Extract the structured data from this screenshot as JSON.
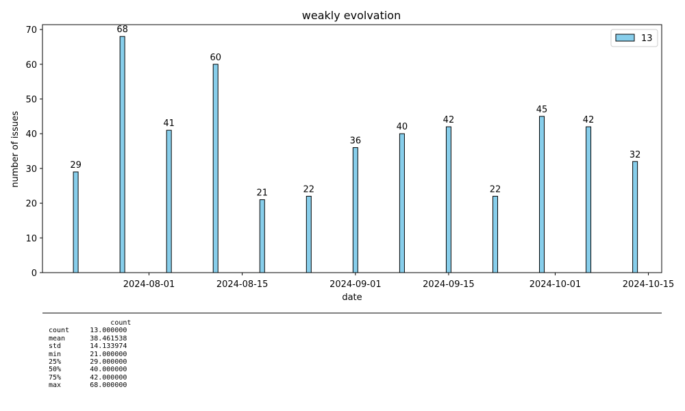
{
  "chart_data": {
    "type": "bar",
    "title": "weakly evolvation",
    "xlabel": "date",
    "ylabel": "number of issues",
    "x_type": "date",
    "dates": [
      "2024-07-21",
      "2024-07-28",
      "2024-08-04",
      "2024-08-11",
      "2024-08-18",
      "2024-08-25",
      "2024-09-01",
      "2024-09-08",
      "2024-09-15",
      "2024-09-22",
      "2024-09-29",
      "2024-10-06",
      "2024-10-13"
    ],
    "values": [
      29,
      68,
      41,
      60,
      21,
      22,
      36,
      40,
      42,
      22,
      45,
      42,
      32
    ],
    "x_ticks": [
      "2024-08-01",
      "2024-08-15",
      "2024-09-01",
      "2024-09-15",
      "2024-10-01",
      "2024-10-15"
    ],
    "y_ticks": [
      0,
      10,
      20,
      30,
      40,
      50,
      60,
      70
    ],
    "ylim": [
      0,
      71.4
    ],
    "xlim": [
      "2024-07-16",
      "2024-10-17"
    ],
    "legend": {
      "label": "13",
      "position": "upper right"
    },
    "grid": false,
    "colors": {
      "bar_fill": "#87ceeb",
      "bar_edge": "#000000",
      "axis": "#000000",
      "text": "#000000"
    }
  },
  "stats": {
    "header": "count",
    "rows": [
      {
        "name": "count",
        "value": "13.000000"
      },
      {
        "name": "mean",
        "value": "38.461538"
      },
      {
        "name": "std",
        "value": "14.133974"
      },
      {
        "name": "min",
        "value": "21.000000"
      },
      {
        "name": "25%",
        "value": "29.000000"
      },
      {
        "name": "50%",
        "value": "40.000000"
      },
      {
        "name": "75%",
        "value": "42.000000"
      },
      {
        "name": "max",
        "value": "68.000000"
      }
    ]
  }
}
